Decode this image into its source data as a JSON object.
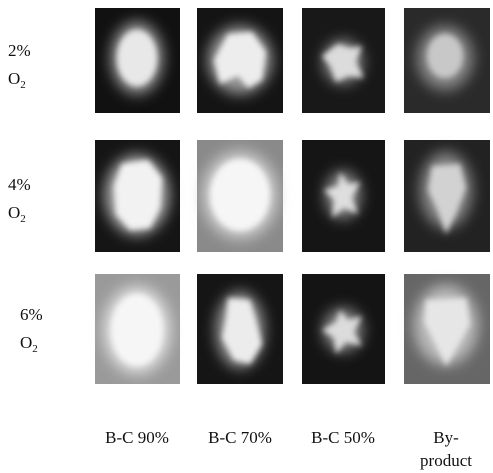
{
  "figure": {
    "rows": [
      {
        "percent": "2%",
        "gas": "O",
        "subscript": "2"
      },
      {
        "percent": "4%",
        "gas": "O",
        "subscript": "2"
      },
      {
        "percent": "6%",
        "gas": "O",
        "subscript": "2"
      }
    ],
    "columns": [
      {
        "lines": [
          "B-C 90%"
        ]
      },
      {
        "lines": [
          "B-C 70%"
        ]
      },
      {
        "lines": [
          "B-C 50%"
        ]
      },
      {
        "lines": [
          "By-",
          "product"
        ]
      }
    ]
  }
}
